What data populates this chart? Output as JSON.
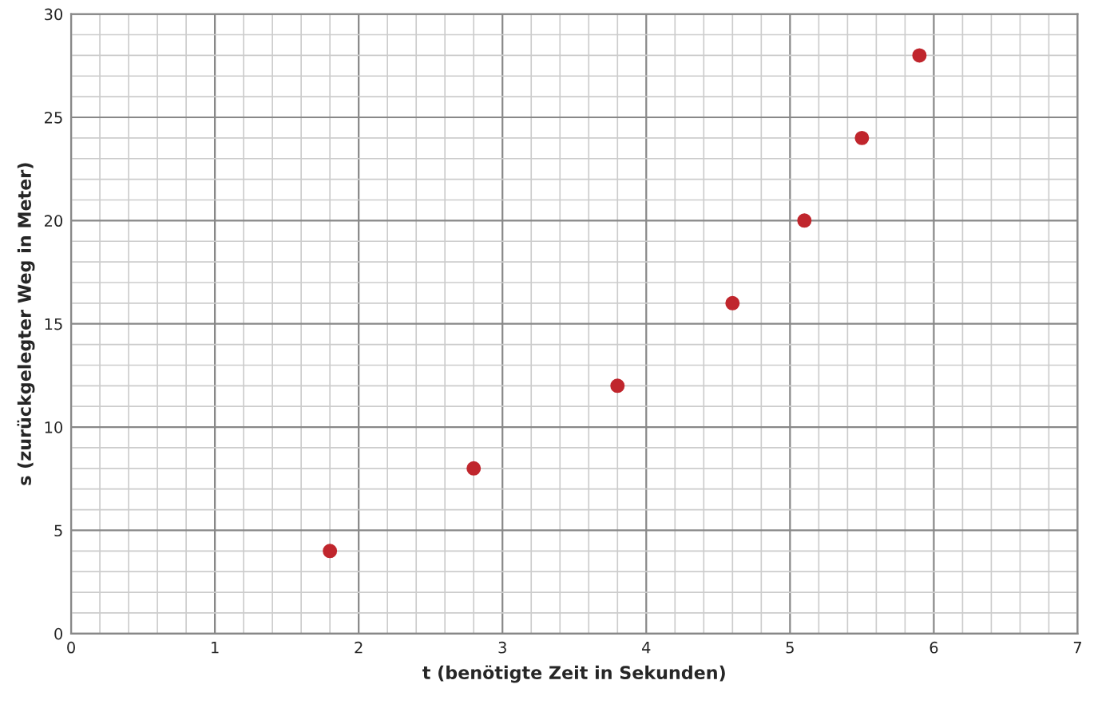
{
  "chart_data": {
    "type": "scatter",
    "xlabel": "t (benötigte Zeit in Sekunden)",
    "ylabel": "s (zurückgelegter Weg in Meter)",
    "x": [
      1.8,
      2.8,
      3.8,
      4.6,
      5.1,
      5.5,
      5.9
    ],
    "series": [
      {
        "color": "#c0262d",
        "values": [
          4,
          8,
          12,
          16,
          20,
          24,
          28
        ]
      }
    ],
    "xlim": [
      0,
      7
    ],
    "xticks": [
      0,
      1,
      2,
      3,
      4,
      5,
      6,
      7
    ],
    "ylim": [
      0,
      30
    ],
    "yticks": [
      0,
      5,
      10,
      15,
      20,
      25,
      30
    ],
    "grid": true,
    "marker": "circle"
  }
}
